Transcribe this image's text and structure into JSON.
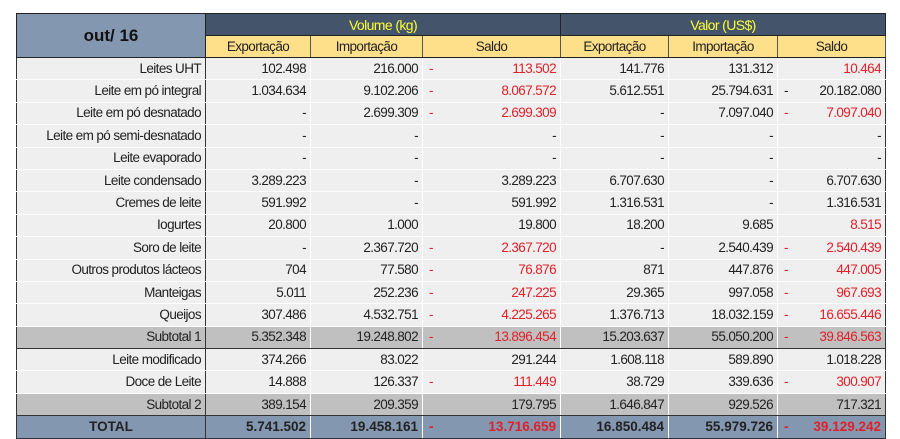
{
  "header": {
    "period": "out/ 16",
    "groups": [
      "Volume (kg)",
      "Valor (US$)"
    ],
    "columns": [
      "Exportação",
      "Importação",
      "Saldo",
      "Exportação",
      "Importação",
      "Saldo"
    ]
  },
  "colors": {
    "header_dark": "#44546a",
    "group_title": "#ffff33",
    "subheader": "#ffe08a",
    "corner": "#8497b0",
    "negative": "#e0202a",
    "subtotal": "#c0c0c0"
  },
  "rows": [
    {
      "type": "data",
      "label": "Leites UHT",
      "vol": [
        "102.498",
        "216.000",
        {
          "sign": "-",
          "value": "113.502",
          "neg": true
        }
      ],
      "val": [
        "141.776",
        "131.312",
        {
          "sign": "",
          "value": "10.464",
          "neg": true
        }
      ]
    },
    {
      "type": "data",
      "label": "Leite em pó integral",
      "vol": [
        "1.034.634",
        "9.102.206",
        {
          "sign": "-",
          "value": "8.067.572",
          "neg": true
        }
      ],
      "val": [
        "5.612.551",
        "25.794.631",
        {
          "sign": "-",
          "value": "20.182.080",
          "neg": false
        }
      ]
    },
    {
      "type": "data",
      "label": "Leite em pó desnatado",
      "vol": [
        "-",
        "2.699.309",
        {
          "sign": "-",
          "value": "2.699.309",
          "neg": true
        }
      ],
      "val": [
        "-",
        "7.097.040",
        {
          "sign": "-",
          "value": "7.097.040",
          "neg": true
        }
      ]
    },
    {
      "type": "data",
      "label": "Leite em pó semi-desnatado",
      "vol": [
        "-",
        "-",
        {
          "sign": "",
          "value": "-",
          "neg": false
        }
      ],
      "val": [
        "-",
        "-",
        {
          "sign": "",
          "value": "-",
          "neg": false
        }
      ]
    },
    {
      "type": "data",
      "label": "Leite evaporado",
      "vol": [
        "-",
        "-",
        {
          "sign": "",
          "value": "-",
          "neg": false
        }
      ],
      "val": [
        "-",
        "-",
        {
          "sign": "",
          "value": "-",
          "neg": false
        }
      ]
    },
    {
      "type": "data",
      "label": "Leite condensado",
      "vol": [
        "3.289.223",
        "-",
        {
          "sign": "",
          "value": "3.289.223",
          "neg": false
        }
      ],
      "val": [
        "6.707.630",
        "-",
        {
          "sign": "",
          "value": "6.707.630",
          "neg": false
        }
      ]
    },
    {
      "type": "data",
      "label": "Cremes de leite",
      "vol": [
        "591.992",
        "-",
        {
          "sign": "",
          "value": "591.992",
          "neg": false
        }
      ],
      "val": [
        "1.316.531",
        "-",
        {
          "sign": "",
          "value": "1.316.531",
          "neg": false
        }
      ]
    },
    {
      "type": "data",
      "label": "Iogurtes",
      "vol": [
        "20.800",
        "1.000",
        {
          "sign": "",
          "value": "19.800",
          "neg": false
        }
      ],
      "val": [
        "18.200",
        "9.685",
        {
          "sign": "",
          "value": "8.515",
          "neg": true
        }
      ]
    },
    {
      "type": "data",
      "label": "Soro de leite",
      "vol": [
        "-",
        "2.367.720",
        {
          "sign": "-",
          "value": "2.367.720",
          "neg": true
        }
      ],
      "val": [
        "-",
        "2.540.439",
        {
          "sign": "-",
          "value": "2.540.439",
          "neg": true
        }
      ]
    },
    {
      "type": "data",
      "label": "Outros produtos lácteos",
      "vol": [
        "704",
        "77.580",
        {
          "sign": "-",
          "value": "76.876",
          "neg": true
        }
      ],
      "val": [
        "871",
        "447.876",
        {
          "sign": "-",
          "value": "447.005",
          "neg": true
        }
      ]
    },
    {
      "type": "data",
      "label": "Manteigas",
      "vol": [
        "5.011",
        "252.236",
        {
          "sign": "-",
          "value": "247.225",
          "neg": true
        }
      ],
      "val": [
        "29.365",
        "997.058",
        {
          "sign": "-",
          "value": "967.693",
          "neg": true
        }
      ]
    },
    {
      "type": "data",
      "label": "Queijos",
      "vol": [
        "307.486",
        "4.532.751",
        {
          "sign": "-",
          "value": "4.225.265",
          "neg": true
        }
      ],
      "val": [
        "1.376.713",
        "18.032.159",
        {
          "sign": "-",
          "value": "16.655.446",
          "neg": true
        }
      ]
    },
    {
      "type": "subt",
      "label": "Subtotal 1",
      "vol": [
        "5.352.348",
        "19.248.802",
        {
          "sign": "-",
          "value": "13.896.454",
          "neg": true
        }
      ],
      "val": [
        "15.203.637",
        "55.050.200",
        {
          "sign": "-",
          "value": "39.846.563",
          "neg": true
        }
      ]
    },
    {
      "type": "data",
      "label": "Leite modificado",
      "vol": [
        "374.266",
        "83.022",
        {
          "sign": "",
          "value": "291.244",
          "neg": false
        }
      ],
      "val": [
        "1.608.118",
        "589.890",
        {
          "sign": "",
          "value": "1.018.228",
          "neg": false
        }
      ]
    },
    {
      "type": "data",
      "label": "Doce de Leite",
      "vol": [
        "14.888",
        "126.337",
        {
          "sign": "-",
          "value": "111.449",
          "neg": true
        }
      ],
      "val": [
        "38.729",
        "339.636",
        {
          "sign": "-",
          "value": "300.907",
          "neg": true
        }
      ]
    },
    {
      "type": "subt",
      "label": "Subtotal 2",
      "vol": [
        "389.154",
        "209.359",
        {
          "sign": "",
          "value": "179.795",
          "neg": false
        }
      ],
      "val": [
        "1.646.847",
        "929.526",
        {
          "sign": "",
          "value": "717.321",
          "neg": false
        }
      ]
    },
    {
      "type": "total",
      "label": "TOTAL",
      "vol": [
        "5.741.502",
        "19.458.161",
        {
          "sign": "-",
          "value": "13.716.659",
          "neg": true
        }
      ],
      "val": [
        "16.850.484",
        "55.979.726",
        {
          "sign": "-",
          "value": "39.129.242",
          "neg": true
        }
      ]
    }
  ]
}
